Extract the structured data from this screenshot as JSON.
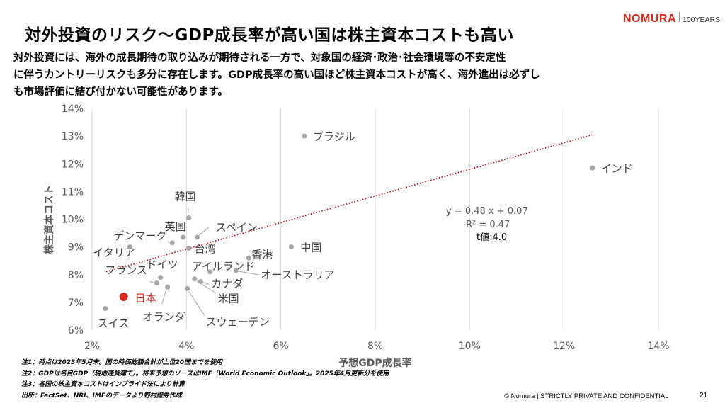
{
  "slide": {
    "title": "対外投資のリスク～GDP成長率が高い国は株主資本コストも高い",
    "lead_lines": [
      "対外投資には、海外の成長期待の取り込みが期待される一方で、対象国の経済･政治･社会環境等の不安定性",
      "に伴うカントリーリスクも多分に存在します。GDP成長率の高い国ほど株主資本コストが高く、海外進出は必ずし",
      "も市場評価に結び付かない可能性があります。"
    ],
    "notes": [
      "注1：時点は2025年5月末。国の時価総額合計が上位20国までを使用",
      "注2：GDPは名目GDP（現地通貨建て）。将来予想のソースはIMF「World Economic Outlook」。2025年4月更新分を使用",
      "注3：各国の株主資本コストはインプライド法により計算",
      "出所：FactSet、NRI、IMFのデータより野村證券作成"
    ],
    "footer": "© Nomura | STRICTLY PRIVATE AND CONFIDENTIAL",
    "page_number": "21"
  },
  "logo": {
    "brand": "NOMURA",
    "years": "100YEARS",
    "color": "#d52b1e"
  },
  "chart_data": {
    "type": "scatter",
    "xlabel": "予想GDP成長率",
    "ylabel": "株主資本コスト",
    "xlim": [
      0.02,
      0.14
    ],
    "ylim": [
      0.06,
      0.14
    ],
    "x_ticks": [
      "2%",
      "4%",
      "6%",
      "8%",
      "10%",
      "12%",
      "14%"
    ],
    "y_ticks": [
      "6%",
      "7%",
      "8%",
      "9%",
      "10%",
      "11%",
      "12%",
      "13%",
      "14%"
    ],
    "grid": "vertical",
    "point_color": "#a6a6a6",
    "highlight_color": "#d52b1e",
    "points": [
      {
        "label": "ブラジル",
        "x": 0.065,
        "y": 0.13
      },
      {
        "label": "インド",
        "x": 0.126,
        "y": 0.1185
      },
      {
        "label": "韓国",
        "x": 0.0405,
        "y": 0.1005
      },
      {
        "label": "英国",
        "x": 0.0393,
        "y": 0.0935
      },
      {
        "label": "スペイン",
        "x": 0.0423,
        "y": 0.0935
      },
      {
        "label": "デンマーク",
        "x": 0.037,
        "y": 0.0915
      },
      {
        "label": "イタリア",
        "x": 0.028,
        "y": 0.09
      },
      {
        "label": "台湾",
        "x": 0.0405,
        "y": 0.0895
      },
      {
        "label": "中国",
        "x": 0.0622,
        "y": 0.09
      },
      {
        "label": "香港",
        "x": 0.0532,
        "y": 0.086
      },
      {
        "label": "アイルランド",
        "x": 0.045,
        "y": 0.081
      },
      {
        "label": "オーストラリア",
        "x": 0.0505,
        "y": 0.0815
      },
      {
        "label": "ドイツ",
        "x": 0.0345,
        "y": 0.079
      },
      {
        "label": "カナダ",
        "x": 0.043,
        "y": 0.0775
      },
      {
        "label": "フランス",
        "x": 0.0337,
        "y": 0.077
      },
      {
        "label": "オランダ",
        "x": 0.036,
        "y": 0.0755
      },
      {
        "label": "米国",
        "x": 0.0417,
        "y": 0.0785
      },
      {
        "label": "スウェーデン",
        "x": 0.0402,
        "y": 0.075
      },
      {
        "label": "日本",
        "x": 0.0267,
        "y": 0.072,
        "highlight": true
      },
      {
        "label": "スイス",
        "x": 0.0228,
        "y": 0.0678
      }
    ],
    "trendline": {
      "slope": 0.48,
      "intercept": 0.07,
      "x_range": [
        0.023,
        0.126
      ],
      "color": "#c00000",
      "style": "dotted",
      "equation": "y = 0.48 x + 0.07",
      "r2": "R² = 0.47",
      "t_value": "t値:4.0"
    }
  }
}
